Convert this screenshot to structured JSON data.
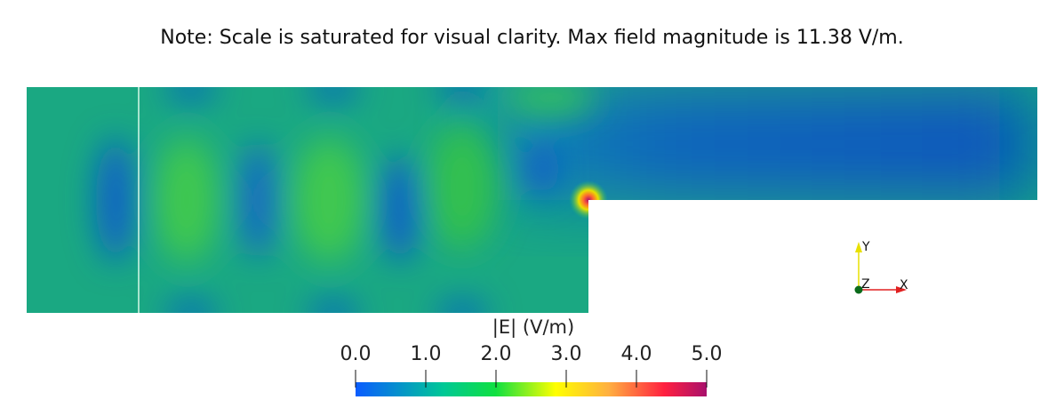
{
  "note": "Note: Scale is saturated for visual clarity. Max field magnitude is 11.38 V/m.",
  "chart_data": {
    "type": "heatmap",
    "title": "Note: Scale is saturated for visual clarity. Max field magnitude is 11.38 V/m.",
    "colorbar": {
      "title": "|E| (V/m)",
      "range": [
        0.0,
        5.0
      ],
      "ticks": [
        "0.0",
        "1.0",
        "2.0",
        "3.0",
        "4.0",
        "5.0"
      ],
      "colors": [
        "#0a5cff",
        "#00c896",
        "#10e040",
        "#ffff00",
        "#ff9e3a",
        "#ff2040",
        "#b0106a"
      ]
    },
    "max_value": 11.38,
    "axes_triad": {
      "x": "X",
      "y": "Y",
      "z": "Z",
      "x_color": "#e02020",
      "y_color": "#e8e000",
      "z_color": "#0a6a1a"
    }
  }
}
